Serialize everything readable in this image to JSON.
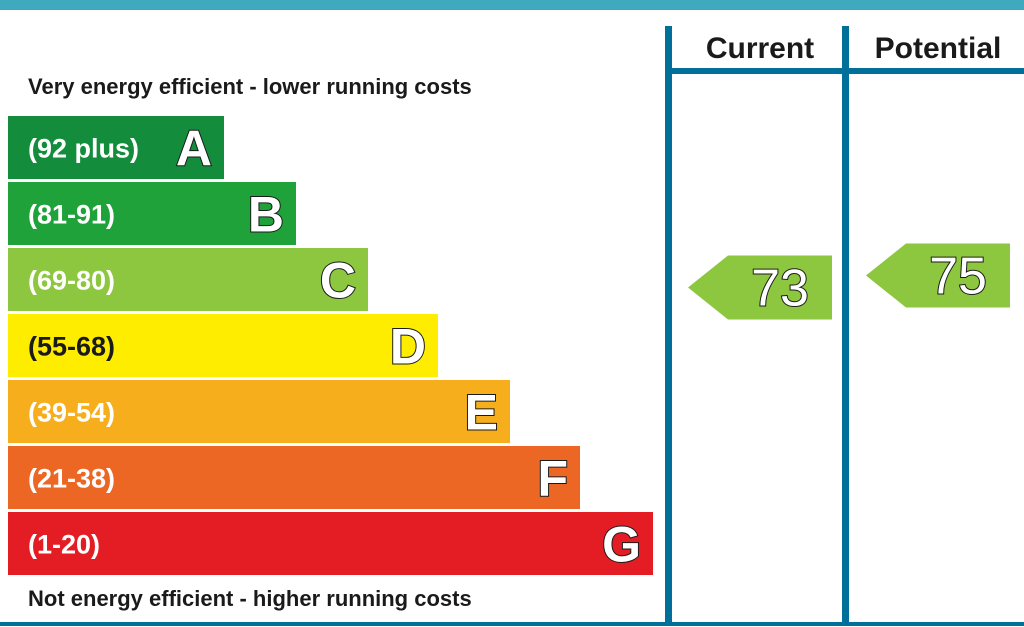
{
  "chart_data": {
    "type": "bar",
    "caption_top": "Very energy efficient - lower running costs",
    "caption_bottom": "Not energy efficient - higher running costs",
    "columns": {
      "current": "Current",
      "potential": "Potential"
    },
    "bands": [
      {
        "letter": "A",
        "range": "(92 plus)",
        "min": 92,
        "max": 100,
        "color": "#138c3b"
      },
      {
        "letter": "B",
        "range": "(81-91)",
        "min": 81,
        "max": 91,
        "color": "#20a23a"
      },
      {
        "letter": "C",
        "range": "(69-80)",
        "min": 69,
        "max": 80,
        "color": "#8dc63f"
      },
      {
        "letter": "D",
        "range": "(55-68)",
        "min": 55,
        "max": 68,
        "color": "#ffed00"
      },
      {
        "letter": "E",
        "range": "(39-54)",
        "min": 39,
        "max": 54,
        "color": "#f7ae1d"
      },
      {
        "letter": "F",
        "range": "(21-38)",
        "min": 21,
        "max": 38,
        "color": "#ec6724"
      },
      {
        "letter": "G",
        "range": "(1-20)",
        "min": 1,
        "max": 20,
        "color": "#e31d23"
      }
    ],
    "current": {
      "value": 73,
      "band": "C",
      "color": "#8dc63f"
    },
    "potential": {
      "value": 75,
      "band": "C",
      "color": "#8dc63f"
    }
  },
  "colors": {
    "frame": "#006f9a",
    "top_bar": "#3fa9bd",
    "dark_range_text_band": "D"
  }
}
